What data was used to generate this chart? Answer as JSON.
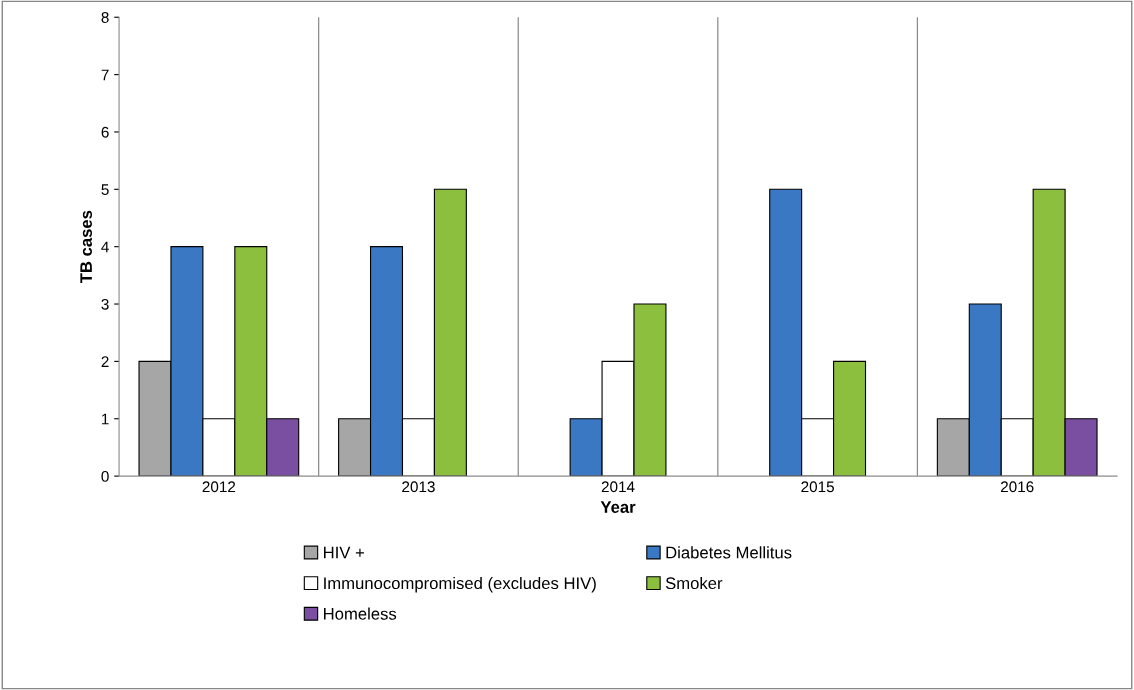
{
  "chart_data": {
    "type": "bar",
    "xlabel": "Year",
    "ylabel": "TB cases",
    "categories": [
      "2012",
      "2013",
      "2014",
      "2015",
      "2016"
    ],
    "series": [
      {
        "name": "HIV +",
        "color": "#a6a6a6",
        "values": [
          2,
          1,
          null,
          null,
          1
        ]
      },
      {
        "name": "Diabetes Mellitus",
        "color": "#3b78c3",
        "values": [
          4,
          4,
          1,
          5,
          3
        ]
      },
      {
        "name": "Immunocompromised (excludes HIV)",
        "color": "#ffffff",
        "values": [
          1,
          1,
          2,
          1,
          1
        ]
      },
      {
        "name": "Smoker",
        "color": "#8dbf3f",
        "values": [
          4,
          5,
          3,
          2,
          5
        ]
      },
      {
        "name": "Homeless",
        "color": "#7a4fa1",
        "values": [
          1,
          null,
          null,
          null,
          1
        ]
      }
    ],
    "ylim": [
      0,
      8
    ],
    "yticks": [
      0,
      1,
      2,
      3,
      4,
      5,
      6,
      7,
      8
    ],
    "grid": "x",
    "legend": "bottom"
  }
}
